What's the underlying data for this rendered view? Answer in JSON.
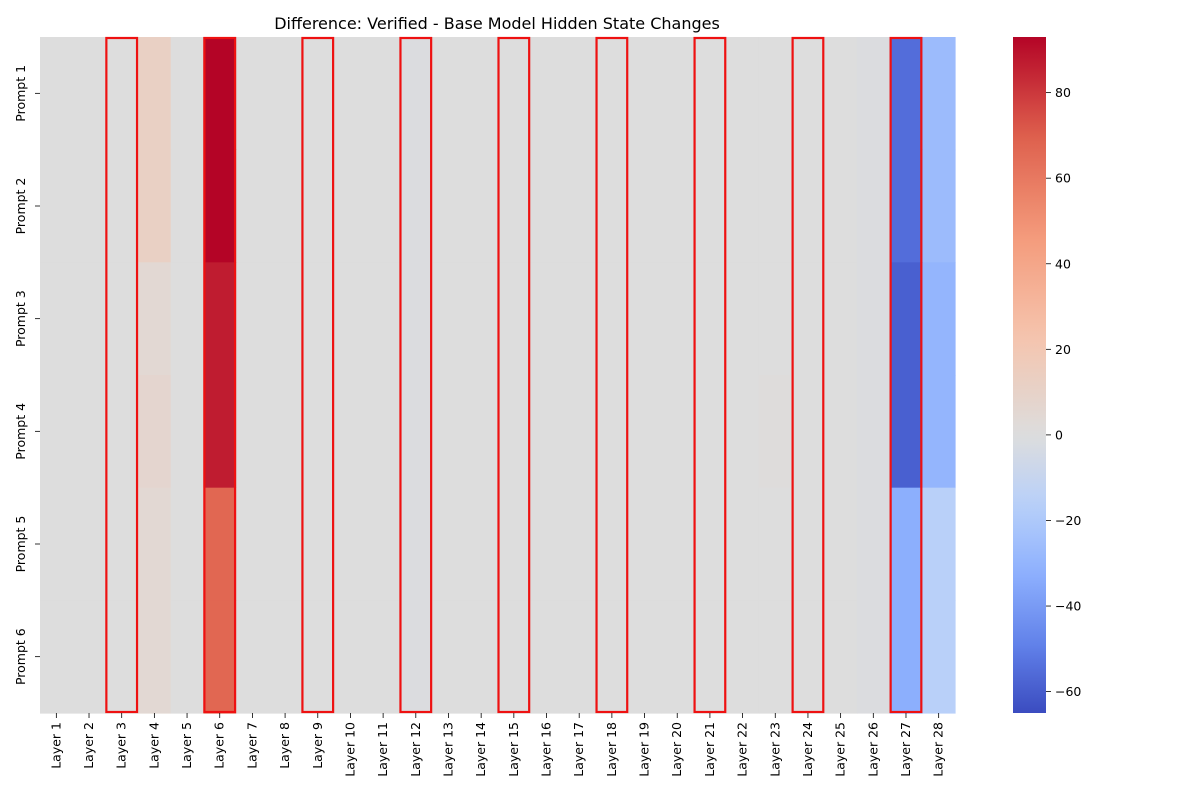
{
  "chart_data": {
    "type": "heatmap",
    "title": "Difference: Verified - Base Model Hidden State Changes",
    "x_labels": [
      "Layer 1",
      "Layer 2",
      "Layer 3",
      "Layer 4",
      "Layer 5",
      "Layer 6",
      "Layer 7",
      "Layer 8",
      "Layer 9",
      "Layer 10",
      "Layer 11",
      "Layer 12",
      "Layer 13",
      "Layer 14",
      "Layer 15",
      "Layer 16",
      "Layer 17",
      "Layer 18",
      "Layer 19",
      "Layer 20",
      "Layer 21",
      "Layer 22",
      "Layer 23",
      "Layer 24",
      "Layer 25",
      "Layer 26",
      "Layer 27",
      "Layer 28"
    ],
    "y_labels": [
      "Prompt 1",
      "Prompt 2",
      "Prompt 3",
      "Prompt 4",
      "Prompt 5",
      "Prompt 6"
    ],
    "values": [
      [
        0,
        0,
        0,
        12,
        0,
        93,
        0,
        0,
        0,
        0,
        0,
        -1,
        0,
        0,
        0,
        0,
        0,
        0,
        0,
        0,
        0,
        0,
        0,
        0,
        0,
        -1,
        -55,
        -27
      ],
      [
        0,
        0,
        0,
        12,
        0,
        93,
        0,
        0,
        0,
        0,
        0,
        -1,
        0,
        0,
        0,
        0,
        0,
        0,
        0,
        0,
        0,
        0,
        0,
        0,
        0,
        -1,
        -55,
        -27
      ],
      [
        0,
        0,
        0,
        5,
        0,
        87,
        0,
        0,
        0,
        0,
        0,
        -1,
        0,
        0,
        0,
        0,
        0,
        0,
        0,
        0,
        0,
        0,
        0,
        0,
        0,
        -1,
        -59,
        -30
      ],
      [
        0,
        0,
        0,
        7,
        0,
        87,
        0,
        0,
        0,
        0,
        0,
        -1,
        0,
        0,
        0,
        0,
        0,
        0,
        0,
        0,
        0,
        0,
        1,
        0,
        0,
        -1,
        -59,
        -30
      ],
      [
        0,
        0,
        0,
        5,
        0,
        67,
        0,
        0,
        0,
        0,
        0,
        -1,
        0,
        0,
        0,
        0,
        0,
        0,
        0,
        0,
        0,
        0,
        0,
        0,
        0,
        -1,
        -33,
        -16
      ],
      [
        0,
        0,
        0,
        5,
        0,
        67,
        0,
        0,
        0,
        0,
        0,
        -1,
        0,
        0,
        0,
        0,
        0,
        0,
        0,
        0,
        0,
        0,
        0,
        0,
        0,
        -1,
        -33,
        -16
      ]
    ],
    "vmin": -65,
    "vmax": 93,
    "colormap": "coolwarm",
    "colorbar_ticks": [
      80,
      60,
      40,
      20,
      0,
      -20,
      -40,
      -60
    ],
    "highlighted_layers": [
      "Layer 3",
      "Layer 6",
      "Layer 9",
      "Layer 12",
      "Layer 15",
      "Layer 18",
      "Layer 21",
      "Layer 24",
      "Layer 27"
    ],
    "highlight_color": "#ee1111",
    "grid": false,
    "legend": "colorbar-right"
  }
}
